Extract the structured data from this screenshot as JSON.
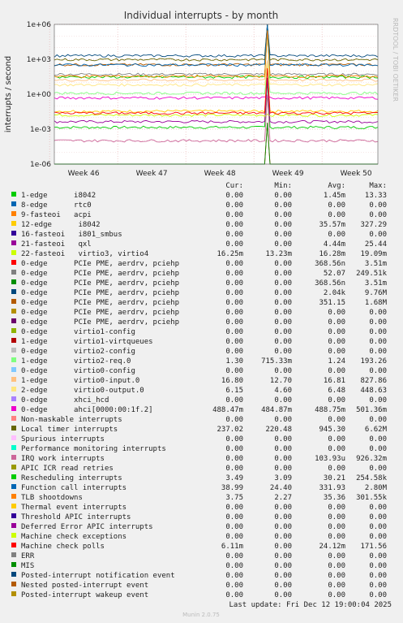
{
  "chart_data": {
    "type": "line",
    "title": "Individual interrupts - by month",
    "ylabel": "interrupts / second",
    "yscale": "log",
    "ylim": [
      1e-06,
      1000000.0
    ],
    "y_ticks": [
      "1e-06",
      "1e-03",
      "1e+00",
      "1e+03",
      "1e+06"
    ],
    "x_ticks": [
      "Week 46",
      "Week 47",
      "Week 48",
      "Week 49",
      "Week 50"
    ],
    "grid": true,
    "side_label": "RRDTOOL / TOBI OETIKER",
    "columns": [
      "Cur:",
      "Min:",
      "Avg:",
      "Max:"
    ],
    "series": [
      {
        "name": "1-edge      i8042",
        "color": "#00cc00",
        "cur": "0.00",
        "min": "0.00",
        "avg": "1.45m",
        "max": "13.33"
      },
      {
        "name": "8-edge      rtc0",
        "color": "#0066b3",
        "cur": "0.00",
        "min": "0.00",
        "avg": "0.00",
        "max": "0.00"
      },
      {
        "name": "9-fasteoi   acpi",
        "color": "#ff8000",
        "cur": "0.00",
        "min": "0.00",
        "avg": "0.00",
        "max": "0.00"
      },
      {
        "name": "12-edge      i8042",
        "color": "#ffcc00",
        "cur": "0.00",
        "min": "0.00",
        "avg": "35.57m",
        "max": "327.29"
      },
      {
        "name": "16-fasteoi   i801_smbus",
        "color": "#330099",
        "cur": "0.00",
        "min": "0.00",
        "avg": "0.00",
        "max": "0.00"
      },
      {
        "name": "21-fasteoi   qxl",
        "color": "#990099",
        "cur": "0.00",
        "min": "0.00",
        "avg": "4.44m",
        "max": "25.44"
      },
      {
        "name": "22-fasteoi   virtio3, virtio4",
        "color": "#ccff00",
        "cur": "16.25m",
        "min": "13.23m",
        "avg": "16.28m",
        "max": "19.09m"
      },
      {
        "name": "0-edge      PCIe PME, aerdrv, pciehp",
        "color": "#ff0000",
        "cur": "0.00",
        "min": "0.00",
        "avg": "368.56n",
        "max": "3.51m"
      },
      {
        "name": "0-edge      PCIe PME, aerdrv, pciehp",
        "color": "#808080",
        "cur": "0.00",
        "min": "0.00",
        "avg": "52.07",
        "max": "249.51k"
      },
      {
        "name": "0-edge      PCIe PME, aerdrv, pciehp",
        "color": "#008f00",
        "cur": "0.00",
        "min": "0.00",
        "avg": "368.56n",
        "max": "3.51m"
      },
      {
        "name": "0-edge      PCIe PME, aerdrv, pciehp",
        "color": "#00487d",
        "cur": "0.00",
        "min": "0.00",
        "avg": "2.04k",
        "max": "9.76M"
      },
      {
        "name": "0-edge      PCIe PME, aerdrv, pciehp",
        "color": "#b35a00",
        "cur": "0.00",
        "min": "0.00",
        "avg": "351.15",
        "max": "1.68M"
      },
      {
        "name": "0-edge      PCIe PME, aerdrv, pciehp",
        "color": "#b38f00",
        "cur": "0.00",
        "min": "0.00",
        "avg": "0.00",
        "max": "0.00"
      },
      {
        "name": "0-edge      PCIe PME, aerdrv, pciehp",
        "color": "#6b006b",
        "cur": "0.00",
        "min": "0.00",
        "avg": "0.00",
        "max": "0.00"
      },
      {
        "name": "0-edge      virtio1-config",
        "color": "#8fb300",
        "cur": "0.00",
        "min": "0.00",
        "avg": "0.00",
        "max": "0.00"
      },
      {
        "name": "1-edge      virtio1-virtqueues",
        "color": "#b30000",
        "cur": "0.00",
        "min": "0.00",
        "avg": "0.00",
        "max": "0.00"
      },
      {
        "name": "0-edge      virtio2-config",
        "color": "#bebebe",
        "cur": "0.00",
        "min": "0.00",
        "avg": "0.00",
        "max": "0.00"
      },
      {
        "name": "1-edge      virtio2-req.0",
        "color": "#80ff80",
        "cur": "1.30",
        "min": "715.33m",
        "avg": "1.24",
        "max": "193.26"
      },
      {
        "name": "0-edge      virtio0-config",
        "color": "#80c9ff",
        "cur": "0.00",
        "min": "0.00",
        "avg": "0.00",
        "max": "0.00"
      },
      {
        "name": "1-edge      virtio0-input.0",
        "color": "#ffc080",
        "cur": "16.80",
        "min": "12.70",
        "avg": "16.81",
        "max": "827.86"
      },
      {
        "name": "2-edge      virtio0-output.0",
        "color": "#ffe680",
        "cur": "6.15",
        "min": "4.60",
        "avg": "6.48",
        "max": "448.63"
      },
      {
        "name": "0-edge      xhci_hcd",
        "color": "#aa80ff",
        "cur": "0.00",
        "min": "0.00",
        "avg": "0.00",
        "max": "0.00"
      },
      {
        "name": "0-edge      ahci[0000:00:1f.2]",
        "color": "#ee00cc",
        "cur": "488.47m",
        "min": "484.87m",
        "avg": "488.75m",
        "max": "501.36m"
      },
      {
        "name": "Non-maskable interrupts",
        "color": "#ff8080",
        "cur": "0.00",
        "min": "0.00",
        "avg": "0.00",
        "max": "0.00"
      },
      {
        "name": "Local timer interrupts",
        "color": "#666600",
        "cur": "237.02",
        "min": "220.48",
        "avg": "945.30",
        "max": "6.62M"
      },
      {
        "name": "Spurious interrupts",
        "color": "#ffbfff",
        "cur": "0.00",
        "min": "0.00",
        "avg": "0.00",
        "max": "0.00"
      },
      {
        "name": "Performance monitoring interrupts",
        "color": "#00ffcc",
        "cur": "0.00",
        "min": "0.00",
        "avg": "0.00",
        "max": "0.00"
      },
      {
        "name": "IRQ work interrupts",
        "color": "#cc6699",
        "cur": "0.00",
        "min": "0.00",
        "avg": "103.93u",
        "max": "926.32m"
      },
      {
        "name": "APIC ICR read retries",
        "color": "#999900",
        "cur": "0.00",
        "min": "0.00",
        "avg": "0.00",
        "max": "0.00"
      },
      {
        "name": "Rescheduling interrupts",
        "color": "#00cc00",
        "cur": "3.49",
        "min": "3.09",
        "avg": "30.21",
        "max": "254.58k"
      },
      {
        "name": "Function call interrupts",
        "color": "#0066b3",
        "cur": "38.99",
        "min": "24.40",
        "avg": "331.93",
        "max": "2.80M"
      },
      {
        "name": "TLB shootdowns",
        "color": "#ff8000",
        "cur": "3.75",
        "min": "2.27",
        "avg": "35.36",
        "max": "301.55k"
      },
      {
        "name": "Thermal event interrupts",
        "color": "#ffcc00",
        "cur": "0.00",
        "min": "0.00",
        "avg": "0.00",
        "max": "0.00"
      },
      {
        "name": "Threshold APIC interrupts",
        "color": "#330099",
        "cur": "0.00",
        "min": "0.00",
        "avg": "0.00",
        "max": "0.00"
      },
      {
        "name": "Deferred Error APIC interrupts",
        "color": "#990099",
        "cur": "0.00",
        "min": "0.00",
        "avg": "0.00",
        "max": "0.00"
      },
      {
        "name": "Machine check exceptions",
        "color": "#ccff00",
        "cur": "0.00",
        "min": "0.00",
        "avg": "0.00",
        "max": "0.00"
      },
      {
        "name": "Machine check polls",
        "color": "#ff0000",
        "cur": "6.11m",
        "min": "0.00",
        "avg": "24.12m",
        "max": "171.56"
      },
      {
        "name": "ERR",
        "color": "#808080",
        "cur": "0.00",
        "min": "0.00",
        "avg": "0.00",
        "max": "0.00"
      },
      {
        "name": "MIS",
        "color": "#008f00",
        "cur": "0.00",
        "min": "0.00",
        "avg": "0.00",
        "max": "0.00"
      },
      {
        "name": "Posted-interrupt notification event",
        "color": "#00487d",
        "cur": "0.00",
        "min": "0.00",
        "avg": "0.00",
        "max": "0.00"
      },
      {
        "name": "Nested posted-interrupt event",
        "color": "#b35a00",
        "cur": "0.00",
        "min": "0.00",
        "avg": "0.00",
        "max": "0.00"
      },
      {
        "name": "Posted-interrupt wakeup event",
        "color": "#b38f00",
        "cur": "0.00",
        "min": "0.00",
        "avg": "0.00",
        "max": "0.00"
      }
    ],
    "last_update": "Last update: Fri Dec 12 19:00:04 2025",
    "footer": "Munin 2.0.75"
  }
}
